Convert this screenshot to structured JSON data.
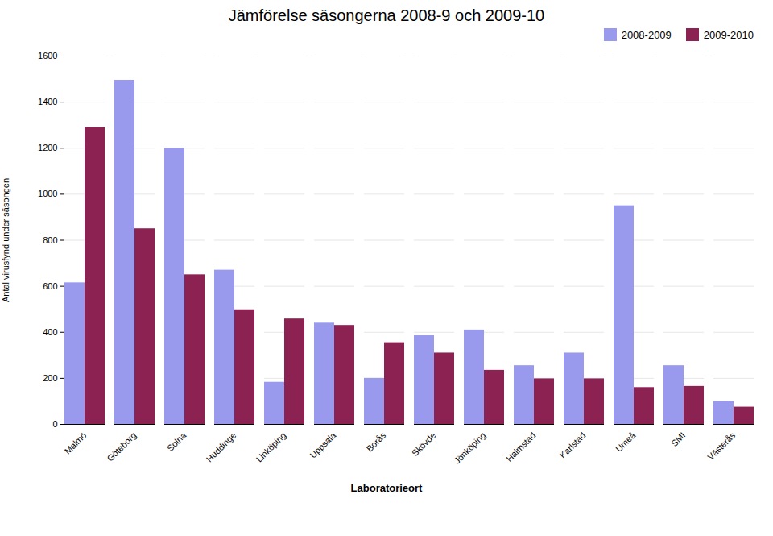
{
  "chart_data": {
    "type": "bar",
    "title": "Jämförelse säsongerna 2008-9 och 2009-10",
    "xlabel": "Laboratorieort",
    "ylabel": "Antal virusfynd under säsongen",
    "categories": [
      "Malmö",
      "Göteborg",
      "Solna",
      "Huddinge",
      "Linköping",
      "Uppsala",
      "Borås",
      "Skövde",
      "Jönköping",
      "Halmstad",
      "Karlstad",
      "Umeå",
      "SMI",
      "Västerås"
    ],
    "series": [
      {
        "name": "2008-2009",
        "color": "#9999ee",
        "values": [
          615,
          1495,
          1200,
          670,
          183,
          440,
          200,
          385,
          410,
          255,
          310,
          950,
          255,
          100
        ]
      },
      {
        "name": "2009-2010",
        "color": "#8B2252",
        "values": [
          1290,
          850,
          650,
          498,
          458,
          430,
          355,
          310,
          235,
          198,
          198,
          160,
          165,
          75
        ]
      }
    ],
    "ylim": [
      0,
      1600
    ],
    "yticks": [
      0,
      200,
      400,
      600,
      800,
      1000,
      1200,
      1400,
      1600
    ],
    "grid": true,
    "legend": "upper right"
  }
}
